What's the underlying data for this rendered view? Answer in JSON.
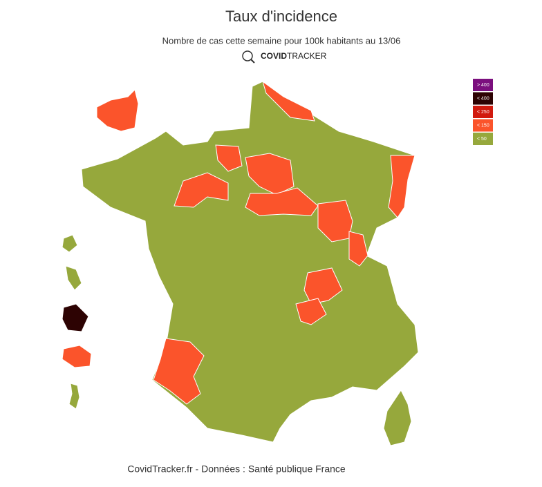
{
  "header": {
    "title": "Taux d'incidence",
    "subtitle": "Nombre de cas cette semaine pour 100k habitants au 13/06",
    "brand_bold": "COVID",
    "brand": "TRACKER"
  },
  "legend": [
    {
      "label": "> 400",
      "color": "#7b0f7e"
    },
    {
      "label": "< 400",
      "color": "#2d0303"
    },
    {
      "label": "< 250",
      "color": "#d11a0e"
    },
    {
      "label": "< 150",
      "color": "#fb542b"
    },
    {
      "label": "< 50",
      "color": "#96a83c"
    }
  ],
  "footer": "CovidTracker.fr - Données : Santé publique France"
}
